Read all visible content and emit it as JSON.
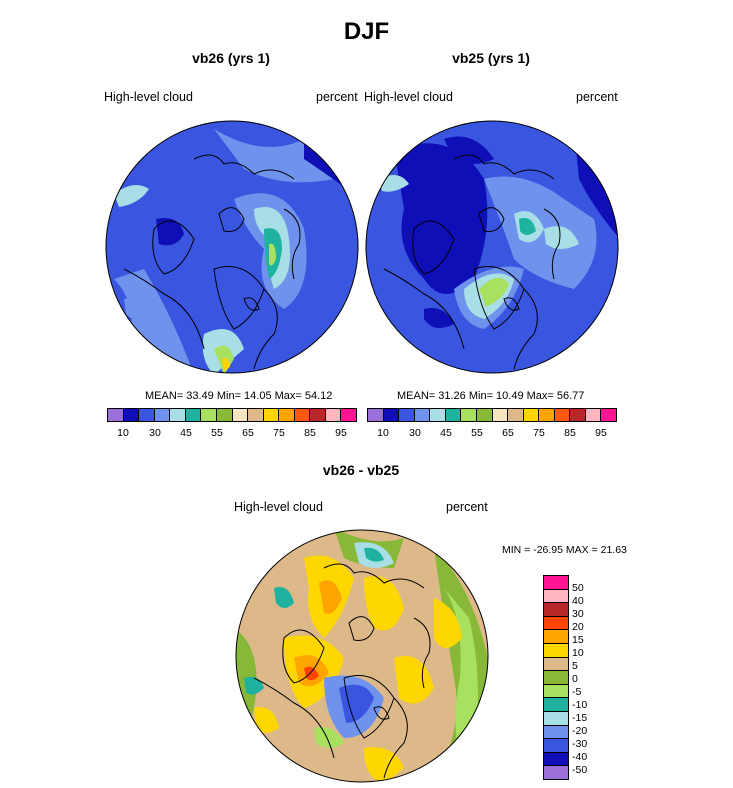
{
  "figure": {
    "title": "DJF",
    "palette_abs": [
      "#9b6fd8",
      "#0f0fb8",
      "#3a55e0",
      "#6f92ec",
      "#a8dfe6",
      "#20b2a0",
      "#a8e060",
      "#88b838",
      "#f5e6c0",
      "#ddb98a",
      "#ffd400",
      "#ffa500",
      "#ff5a10",
      "#b82828",
      "#ffb6c1",
      "#ff1493"
    ],
    "palette_diff": [
      "#ff1493",
      "#ffb6c1",
      "#b82828",
      "#ff4500",
      "#ffa500",
      "#ffd700",
      "#ddb98a",
      "#88b838",
      "#a8e060",
      "#20b2a0",
      "#a8dfe6",
      "#6f92ec",
      "#3a55e0",
      "#0f0fb8",
      "#9b6fd8"
    ]
  },
  "panels": [
    {
      "title": "vb26 (yrs 1)",
      "variable": "High-level cloud",
      "units": "percent",
      "stats": "MEAN=  33.49  Min=  14.05  Max=  54.12",
      "ticks": [
        "10",
        "30",
        "45",
        "55",
        "65",
        "75",
        "85",
        "95"
      ]
    },
    {
      "title": "vb25 (yrs 1)",
      "variable": "High-level cloud",
      "units": "percent",
      "stats": "MEAN=  31.26  Min=  10.49  Max=  56.77",
      "ticks": [
        "10",
        "30",
        "45",
        "55",
        "65",
        "75",
        "85",
        "95"
      ]
    }
  ],
  "diff_panel": {
    "title": "vb26 - vb25",
    "variable": "High-level cloud",
    "units": "percent",
    "stats": "MIN = -26.95 MAX =  21.63",
    "ticks": [
      "50",
      "40",
      "30",
      "20",
      "15",
      "10",
      "5",
      "0",
      "-5",
      "-10",
      "-15",
      "-20",
      "-30",
      "-40",
      "-50"
    ]
  }
}
